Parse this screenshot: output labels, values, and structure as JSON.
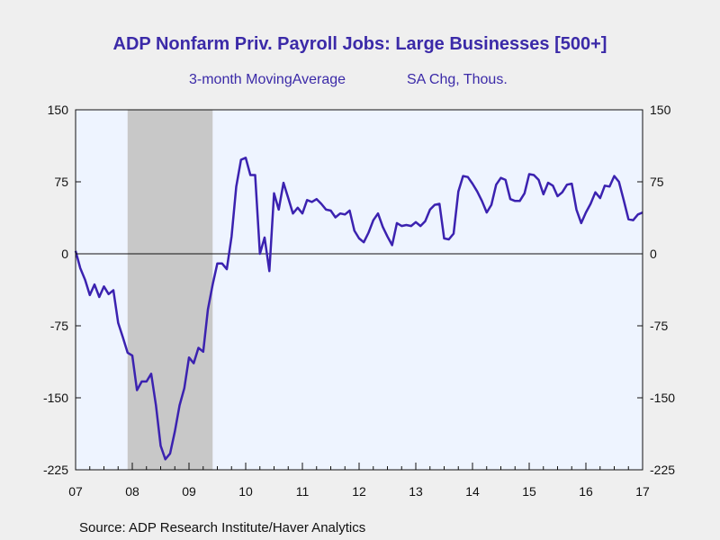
{
  "chart_data": {
    "type": "line",
    "title": "ADP Nonfarm Priv. Payroll Jobs: Large Businesses [500+]",
    "subtitle_left": "3-month MovingAverage",
    "subtitle_right": "SA Chg, Thous.",
    "source": "Source:  ADP Research Institute/Haver Analytics",
    "ylim": [
      -225,
      150
    ],
    "yticks": [
      150,
      75,
      0,
      -75,
      -150,
      -225
    ],
    "xlim": [
      2007.0,
      2017.0
    ],
    "xticks": [
      {
        "x": 2007,
        "label": "07"
      },
      {
        "x": 2008,
        "label": "08"
      },
      {
        "x": 2009,
        "label": "09"
      },
      {
        "x": 2010,
        "label": "10"
      },
      {
        "x": 2011,
        "label": "11"
      },
      {
        "x": 2012,
        "label": "12"
      },
      {
        "x": 2013,
        "label": "13"
      },
      {
        "x": 2014,
        "label": "14"
      },
      {
        "x": 2015,
        "label": "15"
      },
      {
        "x": 2016,
        "label": "16"
      },
      {
        "x": 2017,
        "label": "17"
      }
    ],
    "grid": false,
    "recession": {
      "start": 2007.917,
      "end": 2009.417,
      "color": "#c8c8c8"
    },
    "line_color": "#3b22b0",
    "plot_bg": "#eef4ff",
    "series": [
      {
        "x": [
          2007.0,
          2007.083,
          2007.167,
          2007.25,
          2007.333,
          2007.417,
          2007.5,
          2007.583,
          2007.667,
          2007.75,
          2007.833,
          2007.917,
          2008.0,
          2008.083,
          2008.167,
          2008.25,
          2008.333,
          2008.417,
          2008.5,
          2008.583,
          2008.667,
          2008.75,
          2008.833,
          2008.917,
          2009.0,
          2009.083,
          2009.167,
          2009.25,
          2009.333,
          2009.417,
          2009.5,
          2009.583,
          2009.667,
          2009.75,
          2009.833,
          2009.917,
          2010.0,
          2010.083,
          2010.167,
          2010.25,
          2010.333,
          2010.417,
          2010.5,
          2010.583,
          2010.667,
          2010.75,
          2010.833,
          2010.917,
          2011.0,
          2011.083,
          2011.167,
          2011.25,
          2011.333,
          2011.417,
          2011.5,
          2011.583,
          2011.667,
          2011.75,
          2011.833,
          2011.917,
          2012.0,
          2012.083,
          2012.167,
          2012.25,
          2012.333,
          2012.417,
          2012.5,
          2012.583,
          2012.667,
          2012.75,
          2012.833,
          2012.917,
          2013.0,
          2013.083,
          2013.167,
          2013.25,
          2013.333,
          2013.417,
          2013.5,
          2013.583,
          2013.667,
          2013.75,
          2013.833,
          2013.917,
          2014.0,
          2014.083,
          2014.167,
          2014.25,
          2014.333,
          2014.417,
          2014.5,
          2014.583,
          2014.667,
          2014.75,
          2014.833,
          2014.917,
          2015.0,
          2015.083,
          2015.167,
          2015.25,
          2015.333,
          2015.417,
          2015.5,
          2015.583,
          2015.667,
          2015.75,
          2015.833,
          2015.917,
          2016.0,
          2016.083,
          2016.167,
          2016.25,
          2016.333,
          2016.417,
          2016.5,
          2016.583,
          2016.667,
          2016.75,
          2016.833,
          2016.917,
          2017.0
        ],
        "values": [
          3,
          -15,
          -27,
          -43,
          -32,
          -45,
          -34,
          -42,
          -38,
          -72,
          -87,
          -103,
          -106,
          -142,
          -133,
          -133,
          -125,
          -158,
          -200,
          -214,
          -208,
          -185,
          -158,
          -140,
          -108,
          -114,
          -98,
          -102,
          -58,
          -32,
          -10,
          -10,
          -16,
          18,
          70,
          98,
          100,
          82,
          82,
          0,
          17,
          -18,
          63,
          46,
          74,
          58,
          42,
          48,
          42,
          56,
          54,
          57,
          52,
          46,
          45,
          38,
          42,
          41,
          45,
          24,
          16,
          12,
          22,
          35,
          42,
          28,
          18,
          9,
          32,
          29,
          30,
          29,
          33,
          29,
          34,
          46,
          51,
          52,
          16,
          15,
          21,
          65,
          81,
          80,
          73,
          65,
          55,
          43,
          51,
          72,
          79,
          77,
          57,
          55,
          55,
          63,
          83,
          82,
          77,
          62,
          74,
          71,
          60,
          64,
          72,
          73,
          46,
          32,
          43,
          52,
          64,
          58,
          71,
          70,
          81,
          75,
          56,
          36,
          35,
          41,
          43
        ]
      }
    ]
  }
}
